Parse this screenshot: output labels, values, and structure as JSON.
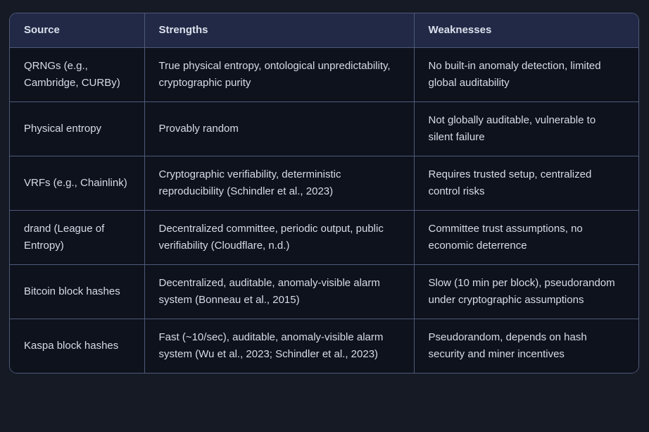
{
  "colors": {
    "page_background": "#161a25",
    "cell_background": "#0e121d",
    "header_background": "#212946",
    "border": "#4e5a78",
    "text": "#d6dbe8"
  },
  "table": {
    "columns": [
      {
        "label": "Source"
      },
      {
        "label": "Strengths"
      },
      {
        "label": "Weaknesses"
      }
    ],
    "rows": [
      {
        "source": "QRNGs (e.g., Cambridge, CURBy)",
        "strengths": "True physical entropy, ontological unpredictability, cryptographic purity",
        "weaknesses": "No built-in anomaly detection, limited global auditability"
      },
      {
        "source": "Physical entropy",
        "strengths": "Provably random",
        "weaknesses": "Not globally auditable, vulnerable to silent failure"
      },
      {
        "source": "VRFs (e.g., Chainlink)",
        "strengths": "Cryptographic verifiability, deterministic reproducibility (Schindler et al., 2023)",
        "weaknesses": "Requires trusted setup, centralized control risks"
      },
      {
        "source": "drand (League of Entropy)",
        "strengths": "Decentralized committee, periodic output, public verifiability (Cloudflare, n.d.)",
        "weaknesses": "Committee trust assumptions, no economic deterrence"
      },
      {
        "source": "Bitcoin block hashes",
        "strengths": "Decentralized, auditable, anomaly-visible alarm system (Bonneau et al., 2015)",
        "weaknesses": "Slow (10 min per block), pseudorandom under cryptographic assumptions"
      },
      {
        "source": "Kaspa block hashes",
        "strengths": "Fast (~10/sec), auditable, anomaly-visible alarm system (Wu et al., 2023; Schindler et al., 2023)",
        "weaknesses": "Pseudorandom, depends on hash security and miner incentives"
      }
    ]
  }
}
